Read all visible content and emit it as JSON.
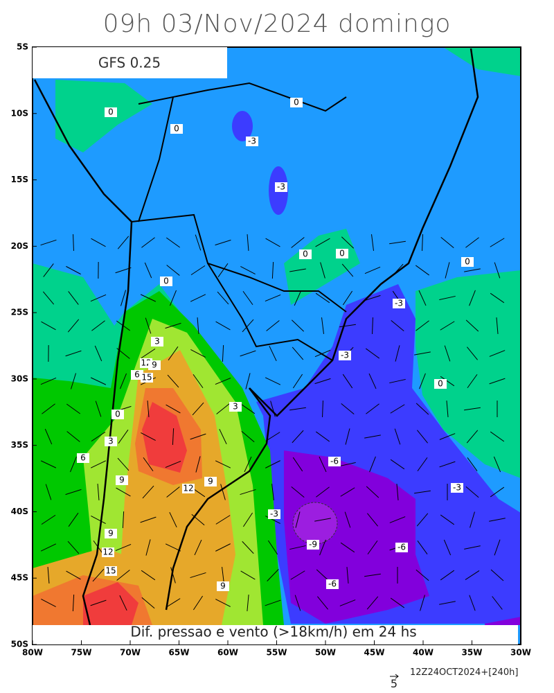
{
  "title": "09h 03/Nov/2024 domingo",
  "model_label": "GFS 0.25",
  "caption": "Dif. pressao e vento (>18km/h) em 24 hs",
  "run_info": "12Z24OCT2024+[240h]",
  "vector_scale_label": "5",
  "map": {
    "lon_ticks": [
      "80W",
      "75W",
      "70W",
      "65W",
      "60W",
      "55W",
      "50W",
      "45W",
      "40W",
      "35W",
      "30W"
    ],
    "lat_ticks": [
      "5S",
      "10S",
      "15S",
      "20S",
      "25S",
      "30S",
      "35S",
      "40S",
      "45S",
      "50S"
    ],
    "contour_labels": [
      "0",
      "0",
      "0",
      "0",
      "0",
      "0",
      "0",
      "0",
      "0",
      "-3",
      "-3",
      "-3",
      "-3",
      "-3",
      "-3",
      "3",
      "3",
      "3",
      "12",
      "9",
      "6",
      "15",
      "6",
      "9",
      "12",
      "9",
      "-6",
      "-9",
      "-6",
      "-6",
      "9",
      "12",
      "15",
      "9"
    ]
  }
}
